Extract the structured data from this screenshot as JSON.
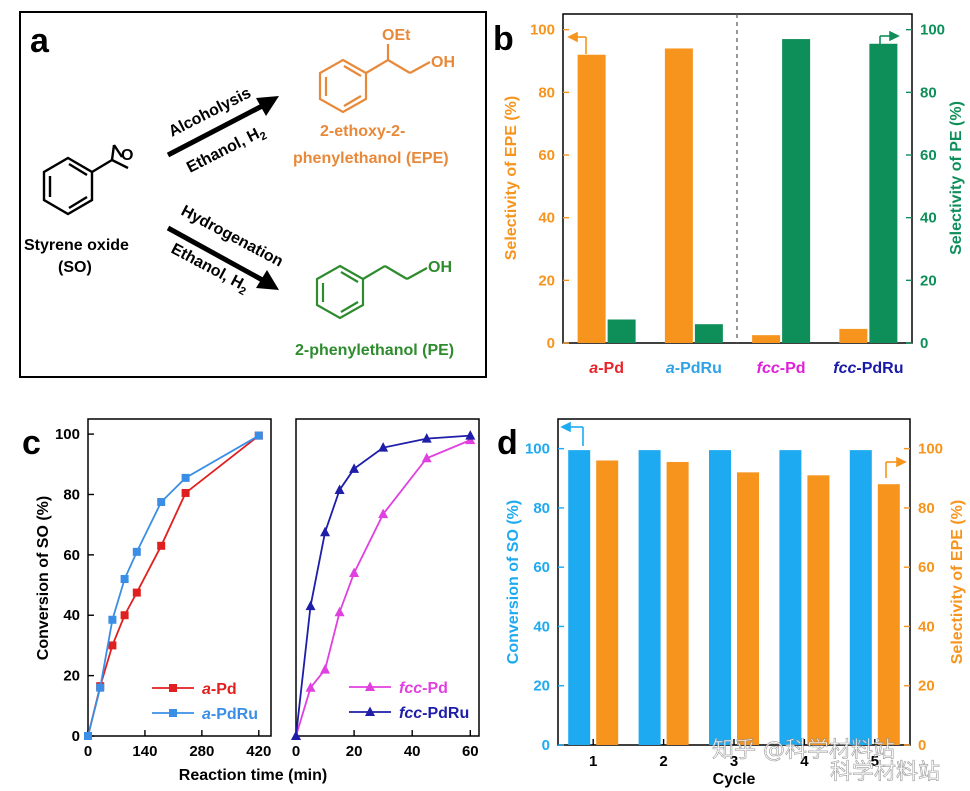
{
  "panel_labels": [
    "a",
    "b",
    "c",
    "d"
  ],
  "scheme": {
    "reactant_name": "Styrene oxide",
    "reactant_abbr": "(SO)",
    "reactant_oxygen": "O",
    "upper_arrow_top": "Alcoholysis",
    "upper_arrow_bottom": "Ethanol, H",
    "upper_arrow_bottom_sub": "2",
    "lower_arrow_top": "Hydrogenation",
    "lower_arrow_bottom": "Ethanol, H",
    "lower_arrow_bottom_sub": "2",
    "epe_group_oet": "OEt",
    "epe_group_oh": "OH",
    "epe_name_line1": "2-ethoxy-2-",
    "epe_name_line2": "phenylethanol (EPE)",
    "pe_group_oh": "OH",
    "pe_name": "2-phenylethanol (PE)",
    "colors": {
      "epe": "#e8893a",
      "pe": "#2e8b2e"
    }
  },
  "chart_data": [
    {
      "panel": "b",
      "type": "bar",
      "categories": [
        {
          "prefix": "a",
          "suffix": "-Pd",
          "color": "#e8232a"
        },
        {
          "prefix": "a",
          "suffix": "-PdRu",
          "color": "#2fa3e6"
        },
        {
          "prefix": "fcc",
          "suffix": "-Pd",
          "color": "#e020d8"
        },
        {
          "prefix": "fcc",
          "suffix": "-PdRu",
          "color": "#1a1aa8"
        }
      ],
      "series": [
        {
          "name": "EPE",
          "values": [
            92,
            94,
            2.5,
            4.5
          ],
          "color": "#f7941d"
        },
        {
          "name": "PE",
          "values": [
            7.5,
            6,
            97,
            95.5
          ],
          "color": "#0e8f5a"
        }
      ],
      "ylabel_left": "Selectivity of EPE (%)",
      "ylabel_right": "Selectivity of PE (%)",
      "ylim": [
        0,
        105
      ],
      "yticks": [
        0,
        20,
        40,
        60,
        80,
        100
      ]
    },
    {
      "panel": "c-left",
      "type": "line",
      "xlabel": "Reaction time (min)",
      "ylabel": "Conversion of SO (%)",
      "xlim": [
        0,
        450
      ],
      "ylim": [
        0,
        105
      ],
      "xticks": [
        0,
        140,
        280,
        420
      ],
      "yticks": [
        0,
        20,
        40,
        60,
        80,
        100
      ],
      "series": [
        {
          "prefix": "a",
          "suffix": "-Pd",
          "color": "#e02020",
          "marker": "square",
          "x": [
            0,
            30,
            60,
            90,
            120,
            180,
            240,
            420
          ],
          "y": [
            0,
            16.5,
            30,
            40,
            47.5,
            63,
            80.5,
            99.5
          ]
        },
        {
          "prefix": "a",
          "suffix": "-PdRu",
          "color": "#3a8ee6",
          "marker": "square",
          "x": [
            0,
            30,
            60,
            90,
            120,
            180,
            240,
            420
          ],
          "y": [
            0,
            16,
            38.5,
            52,
            61,
            77.5,
            85.5,
            99.5
          ]
        }
      ]
    },
    {
      "panel": "c-right",
      "type": "line",
      "xlim": [
        0,
        63
      ],
      "ylim": [
        0,
        105
      ],
      "xticks": [
        0,
        20,
        40,
        60
      ],
      "series": [
        {
          "prefix": "fcc",
          "suffix": "-Pd",
          "color": "#e040e0",
          "marker": "triangle",
          "x": [
            0,
            5,
            10,
            15,
            20,
            30,
            45,
            60
          ],
          "y": [
            0,
            16,
            22,
            41,
            54,
            73.5,
            92,
            98
          ]
        },
        {
          "prefix": "fcc",
          "suffix": "-PdRu",
          "color": "#1e1ea8",
          "marker": "triangle",
          "x": [
            0,
            5,
            10,
            15,
            20,
            30,
            45,
            60
          ],
          "y": [
            0,
            43,
            67.5,
            81.5,
            88.5,
            95.5,
            98.5,
            99.5
          ]
        }
      ]
    },
    {
      "panel": "d",
      "type": "bar",
      "xlabel": "Cycle",
      "categories": [
        "1",
        "2",
        "3",
        "4",
        "5"
      ],
      "series": [
        {
          "name": "Conversion of SO",
          "values": [
            99.5,
            99.5,
            99.5,
            99.5,
            99.5
          ],
          "color": "#1eaaf1"
        },
        {
          "name": "Selectivity of EPE",
          "values": [
            96,
            95.5,
            92,
            91,
            88
          ],
          "color": "#f7941d"
        }
      ],
      "ylabel_left": "Conversion of SO (%)",
      "ylabel_right": "Selectivity of EPE (%)",
      "ylim": [
        0,
        110
      ],
      "yticks": [
        0,
        20,
        40,
        60,
        80,
        100
      ]
    }
  ],
  "watermark": "知乎 @科学材料站",
  "watermark2": "科学材料站"
}
